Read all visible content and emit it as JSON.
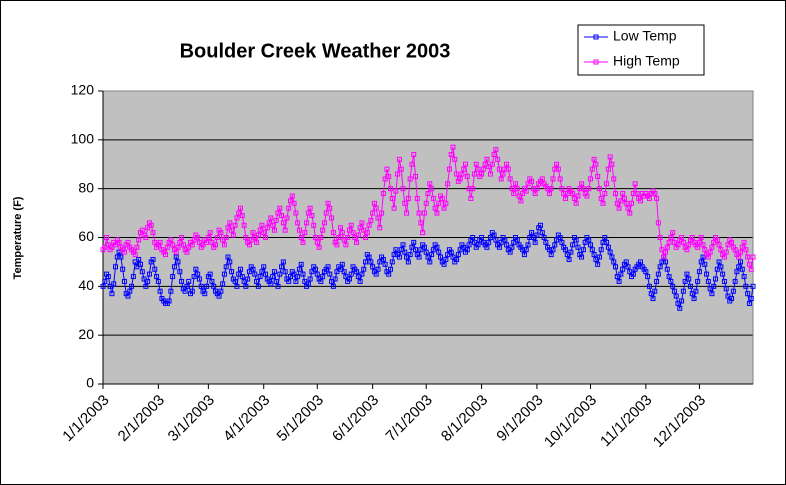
{
  "chart_data": {
    "type": "line",
    "title": "Boulder Creek Weather 2003",
    "y_label": "Temperature (F)",
    "legend": "top-right",
    "grid": true,
    "ylim": [
      0,
      120
    ],
    "yticks": [
      0,
      20,
      40,
      60,
      80,
      100,
      120
    ],
    "xticks": [
      "1/1/2003",
      "2/1/2003",
      "3/1/2003",
      "4/1/2003",
      "5/1/2003",
      "6/1/2003",
      "7/1/2003",
      "8/1/2003",
      "9/1/2003",
      "10/1/2003",
      "11/1/2003",
      "12/1/2003"
    ],
    "x": [
      "1/1/2003",
      "1/2/2003",
      "1/3/2003",
      "1/4/2003",
      "1/5/2003",
      "1/6/2003",
      "1/7/2003",
      "1/8/2003",
      "1/9/2003",
      "1/10/2003",
      "1/11/2003",
      "1/12/2003",
      "1/13/2003",
      "1/14/2003",
      "1/15/2003",
      "1/16/2003",
      "1/17/2003",
      "1/18/2003",
      "1/19/2003",
      "1/20/2003",
      "1/21/2003",
      "1/22/2003",
      "1/23/2003",
      "1/24/2003",
      "1/25/2003",
      "1/26/2003",
      "1/27/2003",
      "1/28/2003",
      "1/29/2003",
      "1/30/2003",
      "1/31/2003",
      "2/1/2003",
      "2/2/2003",
      "2/3/2003",
      "2/4/2003",
      "2/5/2003",
      "2/6/2003",
      "2/7/2003",
      "2/8/2003",
      "2/9/2003",
      "2/10/2003",
      "2/11/2003",
      "2/12/2003",
      "2/13/2003",
      "2/14/2003",
      "2/15/2003",
      "2/16/2003",
      "2/17/2003",
      "2/18/2003",
      "2/19/2003",
      "2/20/2003",
      "2/21/2003",
      "2/22/2003",
      "2/23/2003",
      "2/24/2003",
      "2/25/2003",
      "2/26/2003",
      "2/27/2003",
      "2/28/2003",
      "3/1/2003",
      "3/2/2003",
      "3/3/2003",
      "3/4/2003",
      "3/5/2003",
      "3/6/2003",
      "3/7/2003",
      "3/8/2003",
      "3/9/2003",
      "3/10/2003",
      "3/11/2003",
      "3/12/2003",
      "3/13/2003",
      "3/14/2003",
      "3/15/2003",
      "3/16/2003",
      "3/17/2003",
      "3/18/2003",
      "3/19/2003",
      "3/20/2003",
      "3/21/2003",
      "3/22/2003",
      "3/23/2003",
      "3/24/2003",
      "3/25/2003",
      "3/26/2003",
      "3/27/2003",
      "3/28/2003",
      "3/29/2003",
      "3/30/2003",
      "3/31/2003",
      "4/1/2003",
      "4/2/2003",
      "4/3/2003",
      "4/4/2003",
      "4/5/2003",
      "4/6/2003",
      "4/7/2003",
      "4/8/2003",
      "4/9/2003",
      "4/10/2003",
      "4/11/2003",
      "4/12/2003",
      "4/13/2003",
      "4/14/2003",
      "4/15/2003",
      "4/16/2003",
      "4/17/2003",
      "4/18/2003",
      "4/19/2003",
      "4/20/2003",
      "4/21/2003",
      "4/22/2003",
      "4/23/2003",
      "4/24/2003",
      "4/25/2003",
      "4/26/2003",
      "4/27/2003",
      "4/28/2003",
      "4/29/2003",
      "4/30/2003",
      "5/1/2003",
      "5/2/2003",
      "5/3/2003",
      "5/4/2003",
      "5/5/2003",
      "5/6/2003",
      "5/7/2003",
      "5/8/2003",
      "5/9/2003",
      "5/10/2003",
      "5/11/2003",
      "5/12/2003",
      "5/13/2003",
      "5/14/2003",
      "5/15/2003",
      "5/16/2003",
      "5/17/2003",
      "5/18/2003",
      "5/19/2003",
      "5/20/2003",
      "5/21/2003",
      "5/22/2003",
      "5/23/2003",
      "5/24/2003",
      "5/25/2003",
      "5/26/2003",
      "5/27/2003",
      "5/28/2003",
      "5/29/2003",
      "5/30/2003",
      "5/31/2003",
      "6/1/2003",
      "6/2/2003",
      "6/3/2003",
      "6/4/2003",
      "6/5/2003",
      "6/6/2003",
      "6/7/2003",
      "6/8/2003",
      "6/9/2003",
      "6/10/2003",
      "6/11/2003",
      "6/12/2003",
      "6/13/2003",
      "6/14/2003",
      "6/15/2003",
      "6/16/2003",
      "6/17/2003",
      "6/18/2003",
      "6/19/2003",
      "6/20/2003",
      "6/21/2003",
      "6/22/2003",
      "6/23/2003",
      "6/24/2003",
      "6/25/2003",
      "6/26/2003",
      "6/27/2003",
      "6/28/2003",
      "6/29/2003",
      "6/30/2003",
      "7/1/2003",
      "7/2/2003",
      "7/3/2003",
      "7/4/2003",
      "7/5/2003",
      "7/6/2003",
      "7/7/2003",
      "7/8/2003",
      "7/9/2003",
      "7/10/2003",
      "7/11/2003",
      "7/12/2003",
      "7/13/2003",
      "7/14/2003",
      "7/15/2003",
      "7/16/2003",
      "7/17/2003",
      "7/18/2003",
      "7/19/2003",
      "7/20/2003",
      "7/21/2003",
      "7/22/2003",
      "7/23/2003",
      "7/24/2003",
      "7/25/2003",
      "7/26/2003",
      "7/27/2003",
      "7/28/2003",
      "7/29/2003",
      "7/30/2003",
      "7/31/2003",
      "8/1/2003",
      "8/2/2003",
      "8/3/2003",
      "8/4/2003",
      "8/5/2003",
      "8/6/2003",
      "8/7/2003",
      "8/8/2003",
      "8/9/2003",
      "8/10/2003",
      "8/11/2003",
      "8/12/2003",
      "8/13/2003",
      "8/14/2003",
      "8/15/2003",
      "8/16/2003",
      "8/17/2003",
      "8/18/2003",
      "8/19/2003",
      "8/20/2003",
      "8/21/2003",
      "8/22/2003",
      "8/23/2003",
      "8/24/2003",
      "8/25/2003",
      "8/26/2003",
      "8/27/2003",
      "8/28/2003",
      "8/29/2003",
      "8/30/2003",
      "8/31/2003",
      "9/1/2003",
      "9/2/2003",
      "9/3/2003",
      "9/4/2003",
      "9/5/2003",
      "9/6/2003",
      "9/7/2003",
      "9/8/2003",
      "9/9/2003",
      "9/10/2003",
      "9/11/2003",
      "9/12/2003",
      "9/13/2003",
      "9/14/2003",
      "9/15/2003",
      "9/16/2003",
      "9/17/2003",
      "9/18/2003",
      "9/19/2003",
      "9/20/2003",
      "9/21/2003",
      "9/22/2003",
      "9/23/2003",
      "9/24/2003",
      "9/25/2003",
      "9/26/2003",
      "9/27/2003",
      "9/28/2003",
      "9/29/2003",
      "9/30/2003",
      "10/1/2003",
      "10/2/2003",
      "10/3/2003",
      "10/4/2003",
      "10/5/2003",
      "10/6/2003",
      "10/7/2003",
      "10/8/2003",
      "10/9/2003",
      "10/10/2003",
      "10/11/2003",
      "10/12/2003",
      "10/13/2003",
      "10/14/2003",
      "10/15/2003",
      "10/16/2003",
      "10/17/2003",
      "10/18/2003",
      "10/19/2003",
      "10/20/2003",
      "10/21/2003",
      "10/22/2003",
      "10/23/2003",
      "10/24/2003",
      "10/25/2003",
      "10/26/2003",
      "10/27/2003",
      "10/28/2003",
      "10/29/2003",
      "10/30/2003",
      "10/31/2003",
      "11/1/2003",
      "11/2/2003",
      "11/3/2003",
      "11/4/2003",
      "11/5/2003",
      "11/6/2003",
      "11/7/2003",
      "11/8/2003",
      "11/9/2003",
      "11/10/2003",
      "11/11/2003",
      "11/12/2003",
      "11/13/2003",
      "11/14/2003",
      "11/15/2003",
      "11/16/2003",
      "11/17/2003",
      "11/18/2003",
      "11/19/2003",
      "11/20/2003",
      "11/21/2003",
      "11/22/2003",
      "11/23/2003",
      "11/24/2003",
      "11/25/2003",
      "11/26/2003",
      "11/27/2003",
      "11/28/2003",
      "11/29/2003",
      "11/30/2003",
      "12/1/2003",
      "12/2/2003",
      "12/3/2003",
      "12/4/2003",
      "12/5/2003",
      "12/6/2003",
      "12/7/2003",
      "12/8/2003",
      "12/9/2003",
      "12/10/2003",
      "12/11/2003",
      "12/12/2003",
      "12/13/2003",
      "12/14/2003",
      "12/15/2003",
      "12/16/2003",
      "12/17/2003",
      "12/18/2003",
      "12/19/2003",
      "12/20/2003",
      "12/21/2003",
      "12/22/2003",
      "12/23/2003",
      "12/24/2003",
      "12/25/2003",
      "12/26/2003",
      "12/27/2003",
      "12/28/2003",
      "12/29/2003",
      "12/30/2003",
      "12/31/2003"
    ],
    "series": [
      {
        "name": "Low Temp",
        "color": "#0000ff",
        "values": [
          40,
          42,
          45,
          44,
          40,
          37,
          41,
          48,
          52,
          54,
          52,
          47,
          42,
          37,
          36,
          38,
          40,
          44,
          50,
          48,
          51,
          49,
          46,
          43,
          40,
          42,
          45,
          50,
          51,
          47,
          44,
          42,
          38,
          35,
          34,
          33,
          33,
          34,
          38,
          44,
          48,
          52,
          50,
          46,
          42,
          39,
          38,
          40,
          42,
          37,
          38,
          44,
          47,
          45,
          43,
          40,
          38,
          37,
          40,
          44,
          45,
          42,
          40,
          38,
          37,
          36,
          38,
          41,
          45,
          48,
          52,
          50,
          46,
          43,
          42,
          40,
          45,
          47,
          44,
          42,
          40,
          43,
          46,
          48,
          47,
          45,
          42,
          40,
          44,
          46,
          48,
          45,
          43,
          42,
          41,
          44,
          46,
          42,
          40,
          45,
          48,
          50,
          46,
          43,
          42,
          44,
          46,
          45,
          42,
          44,
          47,
          49,
          45,
          42,
          40,
          41,
          43,
          46,
          48,
          47,
          45,
          43,
          42,
          44,
          46,
          47,
          48,
          45,
          42,
          40,
          43,
          46,
          48,
          47,
          49,
          46,
          44,
          42,
          43,
          45,
          48,
          47,
          46,
          44,
          42,
          45,
          47,
          50,
          53,
          52,
          50,
          48,
          46,
          45,
          47,
          50,
          52,
          51,
          49,
          46,
          45,
          47,
          50,
          53,
          55,
          53,
          52,
          55,
          57,
          54,
          52,
          50,
          53,
          56,
          58,
          55,
          53,
          52,
          55,
          57,
          56,
          54,
          52,
          50,
          53,
          55,
          57,
          56,
          54,
          52,
          50,
          49,
          51,
          53,
          55,
          54,
          52,
          50,
          51,
          53,
          55,
          57,
          56,
          54,
          55,
          57,
          59,
          60,
          58,
          56,
          57,
          59,
          60,
          58,
          57,
          56,
          58,
          60,
          62,
          61,
          59,
          57,
          56,
          58,
          60,
          59,
          57,
          55,
          54,
          56,
          58,
          60,
          59,
          57,
          56,
          55,
          53,
          55,
          57,
          60,
          62,
          60,
          58,
          61,
          64,
          65,
          62,
          60,
          58,
          56,
          55,
          53,
          55,
          57,
          59,
          61,
          60,
          58,
          56,
          55,
          53,
          51,
          54,
          57,
          60,
          59,
          56,
          53,
          52,
          55,
          58,
          60,
          59,
          57,
          55,
          53,
          51,
          49,
          52,
          55,
          58,
          60,
          58,
          56,
          54,
          52,
          50,
          48,
          44,
          42,
          45,
          47,
          49,
          50,
          48,
          46,
          44,
          45,
          47,
          48,
          49,
          50,
          48,
          47,
          46,
          44,
          40,
          37,
          35,
          38,
          42,
          45,
          48,
          50,
          52,
          50,
          47,
          44,
          42,
          40,
          38,
          36,
          33,
          31,
          34,
          38,
          42,
          45,
          43,
          40,
          37,
          35,
          38,
          42,
          46,
          50,
          52,
          49,
          45,
          42,
          39,
          37,
          40,
          43,
          47,
          50,
          48,
          45,
          42,
          39,
          36,
          34,
          35,
          38,
          42,
          46,
          48,
          50,
          47,
          44,
          40,
          37,
          33,
          35,
          40
        ]
      },
      {
        "name": "High Temp",
        "color": "#ff00ff",
        "values": [
          55,
          56,
          60,
          57,
          55,
          56,
          58,
          57,
          59,
          58,
          56,
          55,
          54,
          57,
          58,
          56,
          55,
          54,
          53,
          56,
          59,
          62,
          63,
          61,
          60,
          64,
          66,
          65,
          62,
          58,
          56,
          57,
          58,
          55,
          54,
          53,
          56,
          58,
          59,
          57,
          55,
          54,
          56,
          58,
          60,
          57,
          55,
          54,
          56,
          58,
          57,
          59,
          61,
          60,
          58,
          56,
          57,
          59,
          58,
          60,
          62,
          58,
          56,
          57,
          60,
          63,
          62,
          59,
          57,
          60,
          64,
          66,
          63,
          61,
          65,
          68,
          70,
          72,
          69,
          65,
          60,
          58,
          57,
          59,
          62,
          60,
          58,
          61,
          63,
          65,
          62,
          60,
          64,
          66,
          68,
          65,
          63,
          67,
          70,
          72,
          69,
          66,
          63,
          68,
          72,
          75,
          77,
          74,
          70,
          66,
          63,
          60,
          58,
          62,
          66,
          70,
          72,
          69,
          65,
          60,
          58,
          56,
          60,
          63,
          66,
          70,
          74,
          72,
          68,
          62,
          58,
          57,
          60,
          64,
          62,
          59,
          57,
          60,
          63,
          65,
          62,
          60,
          58,
          61,
          64,
          66,
          63,
          60,
          62,
          65,
          67,
          70,
          74,
          72,
          68,
          64,
          70,
          78,
          84,
          88,
          85,
          80,
          76,
          72,
          79,
          86,
          92,
          88,
          80,
          74,
          70,
          76,
          84,
          90,
          94,
          85,
          76,
          70,
          66,
          62,
          70,
          74,
          78,
          82,
          80,
          76,
          72,
          70,
          74,
          77,
          76,
          72,
          74,
          82,
          88,
          94,
          97,
          92,
          86,
          83,
          84,
          86,
          88,
          90,
          85,
          80,
          76,
          80,
          86,
          90,
          88,
          85,
          86,
          88,
          90,
          92,
          89,
          86,
          90,
          94,
          96,
          92,
          88,
          84,
          86,
          88,
          90,
          88,
          84,
          80,
          78,
          82,
          80,
          77,
          75,
          78,
          80,
          79,
          82,
          84,
          83,
          80,
          78,
          80,
          82,
          83,
          84,
          82,
          81,
          80,
          78,
          80,
          84,
          88,
          90,
          88,
          84,
          80,
          78,
          76,
          78,
          80,
          79,
          78,
          76,
          74,
          77,
          80,
          82,
          80,
          78,
          77,
          80,
          84,
          88,
          92,
          90,
          85,
          80,
          76,
          74,
          78,
          82,
          88,
          93,
          90,
          84,
          78,
          74,
          72,
          75,
          78,
          76,
          74,
          72,
          70,
          74,
          78,
          82,
          78,
          76,
          75,
          78,
          77,
          78,
          77,
          76,
          78,
          79,
          78,
          76,
          66,
          60,
          55,
          52,
          54,
          56,
          58,
          60,
          62,
          58,
          56,
          57,
          59,
          60,
          58,
          56,
          55,
          57,
          59,
          60,
          58,
          57,
          56,
          58,
          60,
          57,
          55,
          53,
          52,
          54,
          56,
          58,
          60,
          59,
          57,
          55,
          53,
          52,
          54,
          57,
          59,
          58,
          56,
          55,
          53,
          52,
          54,
          56,
          58,
          55,
          52,
          49,
          47,
          52
        ]
      }
    ]
  }
}
